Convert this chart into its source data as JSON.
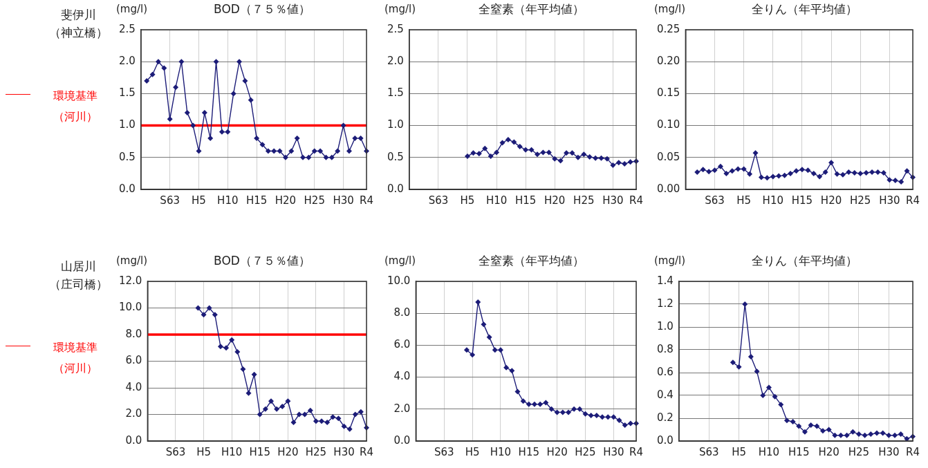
{
  "chart_data": [
    {
      "type": "line",
      "title": "BOD（７５％値）",
      "ylabel": "(mg/l)",
      "annotations": [
        "斐伊川",
        "（神立橋）"
      ],
      "color": "#1c1c78",
      "marker": "diamond",
      "grid": true,
      "categories": [
        null,
        null,
        null,
        null,
        null,
        "S63",
        null,
        null,
        null,
        null,
        "H5",
        null,
        null,
        null,
        null,
        "H10",
        null,
        null,
        null,
        null,
        "H15",
        null,
        null,
        null,
        null,
        "H20",
        null,
        null,
        null,
        null,
        "H25",
        null,
        null,
        null,
        null,
        "H30",
        null,
        null,
        null,
        "R4"
      ],
      "values": [
        null,
        1.7,
        1.8,
        2.0,
        1.9,
        1.1,
        1.6,
        2.0,
        1.2,
        1.0,
        0.6,
        1.2,
        0.8,
        2.0,
        0.9,
        0.9,
        1.5,
        2.0,
        1.7,
        1.4,
        0.8,
        0.7,
        0.6,
        0.6,
        0.6,
        0.5,
        0.6,
        0.8,
        0.5,
        0.5,
        0.6,
        0.6,
        0.5,
        0.5,
        0.6,
        1.0,
        0.6,
        0.8,
        0.8,
        0.6
      ],
      "ylim": [
        0,
        2.5
      ],
      "yticks": [
        {
          "value": 0,
          "label": "0.0"
        },
        0.5,
        {
          "value": 1,
          "label": "1.0"
        },
        1.5,
        {
          "value": 2,
          "label": "2.0"
        },
        2.5
      ],
      "ref_lines": [
        {
          "axis": "y",
          "value": 1.0,
          "label": "環境基準（河川）",
          "color": "#ff0000"
        }
      ]
    },
    {
      "type": "line",
      "title": "全窒素（年平均値）",
      "ylabel": "(mg/l)",
      "color": "#1c1c78",
      "marker": "diamond",
      "grid": true,
      "categories": [
        null,
        null,
        null,
        null,
        null,
        "S63",
        null,
        null,
        null,
        null,
        "H5",
        null,
        null,
        null,
        null,
        "H10",
        null,
        null,
        null,
        null,
        "H15",
        null,
        null,
        null,
        null,
        "H20",
        null,
        null,
        null,
        null,
        "H25",
        null,
        null,
        null,
        null,
        "H30",
        null,
        null,
        null,
        "R4"
      ],
      "values": [
        null,
        null,
        null,
        null,
        null,
        null,
        null,
        null,
        null,
        null,
        0.52,
        0.57,
        0.56,
        0.64,
        0.52,
        0.58,
        0.73,
        0.78,
        0.74,
        0.67,
        0.62,
        0.62,
        0.55,
        0.58,
        0.58,
        0.48,
        0.45,
        0.57,
        0.57,
        0.5,
        0.55,
        0.51,
        0.49,
        0.49,
        0.48,
        0.38,
        0.42,
        0.4,
        0.43,
        0.44
      ],
      "ylim": [
        0,
        2.5
      ],
      "yticks": [
        {
          "value": 0,
          "label": "0.0"
        },
        0.5,
        {
          "value": 1,
          "label": "1.0"
        },
        1.5,
        {
          "value": 2,
          "label": "2.0"
        },
        2.5
      ]
    },
    {
      "type": "line",
      "title": "全りん（年平均値）",
      "ylabel": "(mg/l)",
      "color": "#1c1c78",
      "marker": "diamond",
      "grid": true,
      "categories": [
        null,
        null,
        null,
        null,
        null,
        "S63",
        null,
        null,
        null,
        null,
        "H5",
        null,
        null,
        null,
        null,
        "H10",
        null,
        null,
        null,
        null,
        "H15",
        null,
        null,
        null,
        null,
        "H20",
        null,
        null,
        null,
        null,
        "H25",
        null,
        null,
        null,
        null,
        "H30",
        null,
        null,
        null,
        "R4"
      ],
      "values": [
        null,
        null,
        0.027,
        0.031,
        0.028,
        0.03,
        0.036,
        0.025,
        0.029,
        0.032,
        0.032,
        0.024,
        0.057,
        0.019,
        0.018,
        0.02,
        0.021,
        0.022,
        0.025,
        0.029,
        0.031,
        0.03,
        0.025,
        0.02,
        0.027,
        0.042,
        0.024,
        0.023,
        0.027,
        0.026,
        0.025,
        0.026,
        0.027,
        0.027,
        0.026,
        0.015,
        0.014,
        0.012,
        0.029,
        0.019
      ],
      "ylim": [
        0,
        0.25
      ],
      "yticks": [
        {
          "value": 0,
          "label": "0.00"
        },
        0.05,
        {
          "value": 0.1,
          "label": "0.10"
        },
        0.15,
        {
          "value": 0.2,
          "label": "0.20"
        },
        0.25
      ]
    },
    {
      "type": "line",
      "title": "BOD（７５％値）",
      "ylabel": "(mg/l)",
      "annotations": [
        "山居川",
        "（庄司橋）"
      ],
      "color": "#1c1c78",
      "marker": "diamond",
      "grid": true,
      "categories": [
        null,
        null,
        null,
        null,
        null,
        "S63",
        null,
        null,
        null,
        null,
        "H5",
        null,
        null,
        null,
        null,
        "H10",
        null,
        null,
        null,
        null,
        "H15",
        null,
        null,
        null,
        null,
        "H20",
        null,
        null,
        null,
        null,
        "H25",
        null,
        null,
        null,
        null,
        "H30",
        null,
        null,
        null,
        "R4"
      ],
      "values": [
        null,
        null,
        null,
        null,
        null,
        null,
        null,
        null,
        null,
        10.0,
        9.5,
        10.0,
        9.5,
        7.1,
        7.0,
        7.6,
        6.7,
        5.4,
        3.6,
        5.0,
        2.0,
        2.4,
        3.0,
        2.4,
        2.6,
        3.0,
        1.4,
        2.0,
        2.0,
        2.3,
        1.5,
        1.5,
        1.4,
        1.8,
        1.7,
        1.1,
        0.9,
        2.0,
        2.2,
        1.0
      ],
      "ylim": [
        0,
        12
      ],
      "yticks": [
        {
          "value": 0,
          "label": "0.0"
        },
        {
          "value": 2,
          "label": "2.0"
        },
        {
          "value": 4,
          "label": "4.0"
        },
        {
          "value": 6,
          "label": "6.0"
        },
        {
          "value": 8,
          "label": "8.0"
        },
        {
          "value": 10,
          "label": "10.0"
        },
        {
          "value": 12,
          "label": "12.0"
        }
      ],
      "ref_lines": [
        {
          "axis": "y",
          "value": 8.0,
          "label": "環境基準（河川）",
          "color": "#ff0000"
        }
      ]
    },
    {
      "type": "line",
      "title": "全窒素（年平均値）",
      "ylabel": "(mg/l)",
      "color": "#1c1c78",
      "marker": "diamond",
      "grid": true,
      "categories": [
        null,
        null,
        null,
        null,
        null,
        "S63",
        null,
        null,
        null,
        null,
        "H5",
        null,
        null,
        null,
        null,
        "H10",
        null,
        null,
        null,
        null,
        "H15",
        null,
        null,
        null,
        null,
        "H20",
        null,
        null,
        null,
        null,
        "H25",
        null,
        null,
        null,
        null,
        "H30",
        null,
        null,
        null,
        "R4"
      ],
      "values": [
        null,
        null,
        null,
        null,
        null,
        null,
        null,
        null,
        null,
        5.7,
        5.4,
        8.7,
        7.3,
        6.5,
        5.7,
        5.7,
        4.6,
        4.4,
        3.1,
        2.5,
        2.3,
        2.3,
        2.3,
        2.4,
        2.0,
        1.8,
        1.8,
        1.8,
        2.0,
        2.0,
        1.7,
        1.6,
        1.6,
        1.5,
        1.5,
        1.5,
        1.3,
        1.0,
        1.1,
        1.1
      ],
      "ylim": [
        0,
        10
      ],
      "yticks": [
        {
          "value": 0,
          "label": "0.0"
        },
        {
          "value": 2,
          "label": "2.0"
        },
        {
          "value": 4,
          "label": "4.0"
        },
        {
          "value": 6,
          "label": "6.0"
        },
        {
          "value": 8,
          "label": "8.0"
        },
        {
          "value": 10,
          "label": "10.0"
        }
      ]
    },
    {
      "type": "line",
      "title": "全りん（年平均値）",
      "ylabel": "(mg/l)",
      "color": "#1c1c78",
      "marker": "diamond",
      "grid": true,
      "categories": [
        null,
        null,
        null,
        null,
        null,
        "S63",
        null,
        null,
        null,
        null,
        "H5",
        null,
        null,
        null,
        null,
        "H10",
        null,
        null,
        null,
        null,
        "H15",
        null,
        null,
        null,
        null,
        "H20",
        null,
        null,
        null,
        null,
        "H25",
        null,
        null,
        null,
        null,
        "H30",
        null,
        null,
        null,
        "R4"
      ],
      "values": [
        null,
        null,
        null,
        null,
        null,
        null,
        null,
        null,
        null,
        0.69,
        0.65,
        1.2,
        0.74,
        0.61,
        0.4,
        0.47,
        0.39,
        0.32,
        0.18,
        0.17,
        0.13,
        0.08,
        0.14,
        0.13,
        0.09,
        0.1,
        0.05,
        0.05,
        0.05,
        0.08,
        0.06,
        0.05,
        0.06,
        0.07,
        0.07,
        0.05,
        0.05,
        0.06,
        0.02,
        0.04
      ],
      "ylim": [
        0,
        1.4
      ],
      "yticks": [
        {
          "value": 0,
          "label": "0.0"
        },
        0.2,
        0.4,
        0.6,
        0.8,
        {
          "value": 1,
          "label": "1.0"
        },
        1.2,
        1.4
      ]
    }
  ]
}
